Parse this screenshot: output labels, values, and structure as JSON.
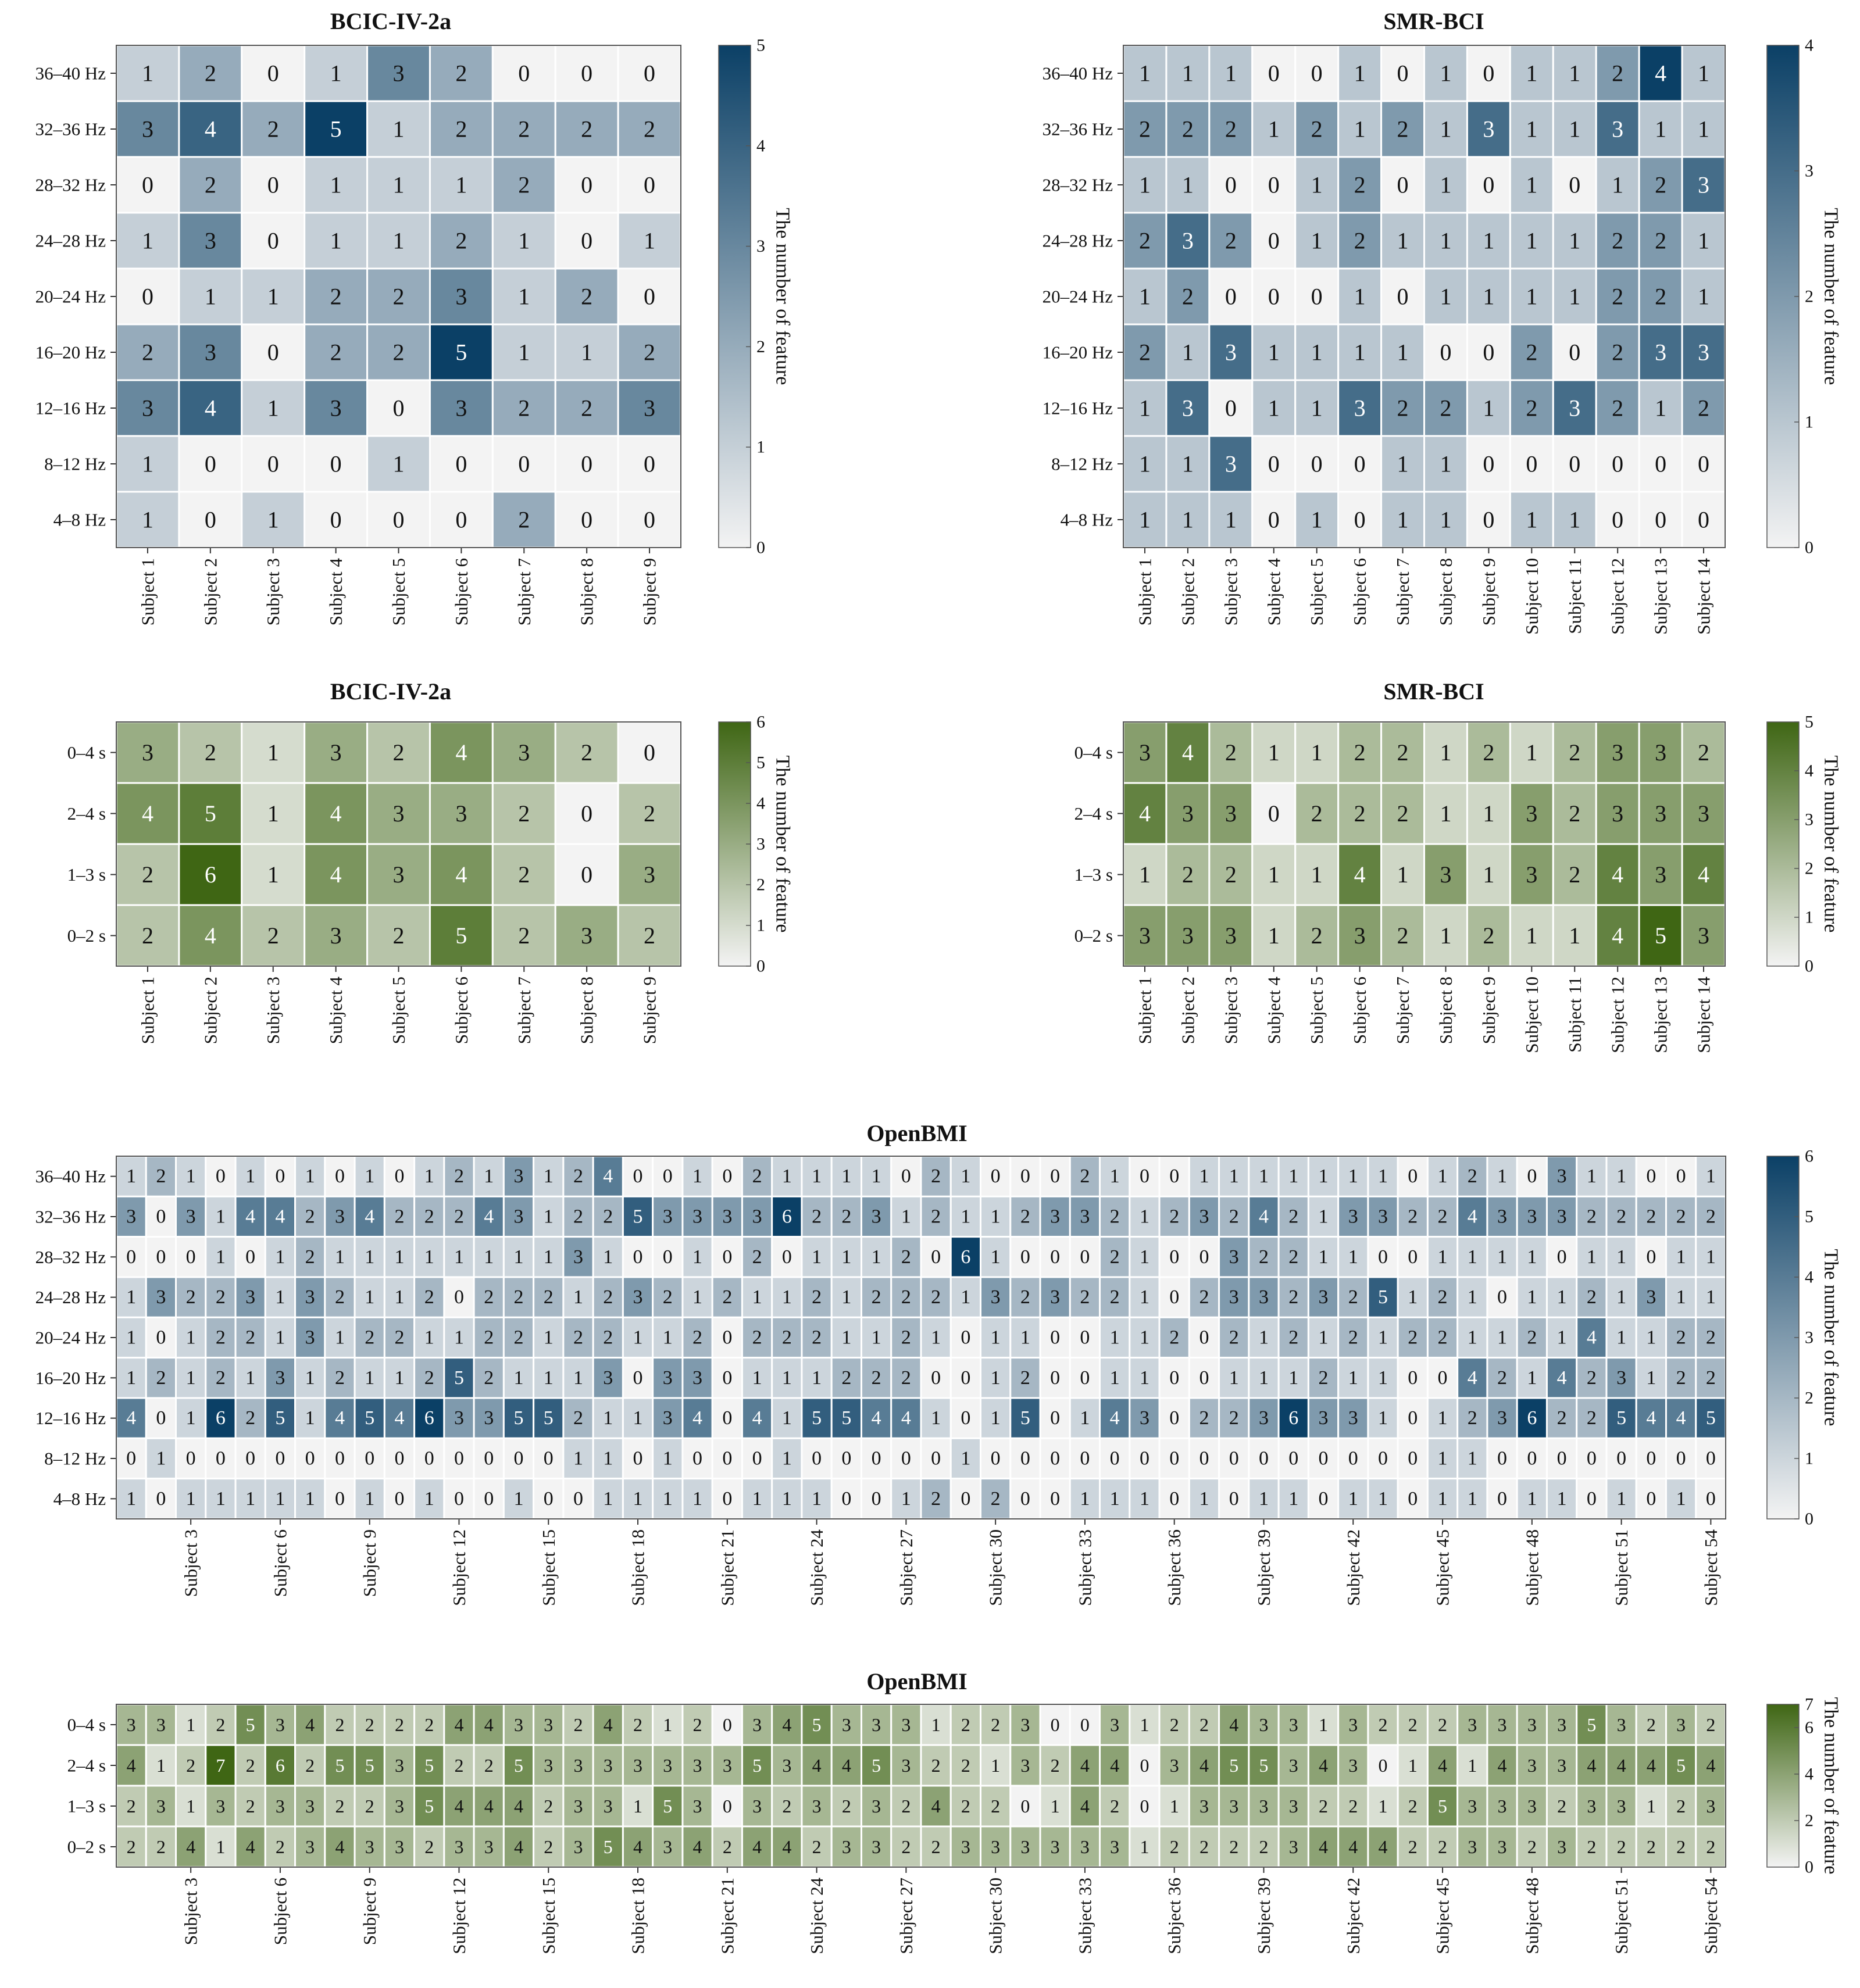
{
  "colorbar_label": "The number of feature",
  "palettes": {
    "blue": {
      "light": "#f3f3f3",
      "dark": "#0b4066",
      "text_dark": "#111111",
      "text_light": "#ffffff"
    },
    "green": {
      "light": "#f3f3f3",
      "dark": "#3f6614",
      "text_dark": "#111111",
      "text_light": "#ffffff"
    }
  },
  "chart_data": [
    {
      "id": "bcic-freq",
      "type": "heatmap",
      "title": "BCIC-IV-2a",
      "palette": "blue",
      "ylabels": [
        "36–40 Hz",
        "32–36 Hz",
        "28–32 Hz",
        "24–28 Hz",
        "20–24 Hz",
        "16–20 Hz",
        "12–16 Hz",
        "8–12 Hz",
        "4–8 Hz"
      ],
      "xlabels": [
        "Subject 1",
        "Subject 2",
        "Subject 3",
        "Subject 4",
        "Subject 5",
        "Subject 6",
        "Subject 7",
        "Subject 8",
        "Subject 9"
      ],
      "values": [
        [
          1,
          2,
          0,
          1,
          3,
          2,
          0,
          0,
          0
        ],
        [
          3,
          4,
          2,
          5,
          1,
          2,
          2,
          2,
          2
        ],
        [
          0,
          2,
          0,
          1,
          1,
          1,
          2,
          0,
          0
        ],
        [
          1,
          3,
          0,
          1,
          1,
          2,
          1,
          0,
          1
        ],
        [
          0,
          1,
          1,
          2,
          2,
          3,
          1,
          2,
          0
        ],
        [
          2,
          3,
          0,
          2,
          2,
          5,
          1,
          1,
          2
        ],
        [
          3,
          4,
          1,
          3,
          0,
          3,
          2,
          2,
          3
        ],
        [
          1,
          0,
          0,
          0,
          1,
          0,
          0,
          0,
          0
        ],
        [
          1,
          0,
          1,
          0,
          0,
          0,
          2,
          0,
          0
        ]
      ],
      "colorbar_range": [
        0,
        5
      ],
      "colorbar_ticks": [
        0,
        1,
        2,
        3,
        4,
        5
      ]
    },
    {
      "id": "smr-freq",
      "type": "heatmap",
      "title": "SMR-BCI",
      "palette": "blue",
      "ylabels": [
        "36–40 Hz",
        "32–36 Hz",
        "28–32 Hz",
        "24–28 Hz",
        "20–24 Hz",
        "16–20 Hz",
        "12–16 Hz",
        "8–12 Hz",
        "4–8 Hz"
      ],
      "xlabels": [
        "Subject 1",
        "Subject 2",
        "Subject 3",
        "Subject 4",
        "Subject 5",
        "Subject 6",
        "Subject 7",
        "Subject 8",
        "Subject 9",
        "Subject 10",
        "Subject 11",
        "Subject 12",
        "Subject 13",
        "Subject 14"
      ],
      "values": [
        [
          1,
          1,
          1,
          0,
          0,
          1,
          0,
          1,
          0,
          1,
          1,
          2,
          4,
          1
        ],
        [
          2,
          2,
          2,
          1,
          2,
          1,
          2,
          1,
          3,
          1,
          1,
          3,
          1,
          1
        ],
        [
          1,
          1,
          0,
          0,
          1,
          2,
          0,
          1,
          0,
          1,
          0,
          1,
          2,
          3
        ],
        [
          2,
          3,
          2,
          0,
          1,
          2,
          1,
          1,
          1,
          1,
          1,
          2,
          2,
          1
        ],
        [
          1,
          2,
          0,
          0,
          0,
          1,
          0,
          1,
          1,
          1,
          1,
          2,
          2,
          1
        ],
        [
          2,
          1,
          3,
          1,
          1,
          1,
          1,
          0,
          0,
          2,
          0,
          2,
          3,
          3
        ],
        [
          1,
          3,
          0,
          1,
          1,
          3,
          2,
          2,
          1,
          2,
          3,
          2,
          1,
          2
        ],
        [
          1,
          1,
          3,
          0,
          0,
          0,
          1,
          1,
          0,
          0,
          0,
          0,
          0,
          0
        ],
        [
          1,
          1,
          1,
          0,
          1,
          0,
          1,
          1,
          0,
          1,
          1,
          0,
          0,
          0
        ]
      ],
      "colorbar_range": [
        0,
        4
      ],
      "colorbar_ticks": [
        0,
        1,
        2,
        3,
        4
      ]
    },
    {
      "id": "bcic-time",
      "type": "heatmap",
      "title": "BCIC-IV-2a",
      "palette": "green",
      "ylabels": [
        "0–4 s",
        "2–4 s",
        "1–3 s",
        "0–2 s"
      ],
      "xlabels": [
        "Subject 1",
        "Subject 2",
        "Subject 3",
        "Subject 4",
        "Subject 5",
        "Subject 6",
        "Subject 7",
        "Subject 8",
        "Subject 9"
      ],
      "values": [
        [
          3,
          2,
          1,
          3,
          2,
          4,
          3,
          2,
          0
        ],
        [
          4,
          5,
          1,
          4,
          3,
          3,
          2,
          0,
          2
        ],
        [
          2,
          6,
          1,
          4,
          3,
          4,
          2,
          0,
          3
        ],
        [
          2,
          4,
          2,
          3,
          2,
          5,
          2,
          3,
          2
        ]
      ],
      "colorbar_range": [
        0,
        6
      ],
      "colorbar_ticks": [
        0,
        1,
        2,
        3,
        4,
        5,
        6
      ]
    },
    {
      "id": "smr-time",
      "type": "heatmap",
      "title": "SMR-BCI",
      "palette": "green",
      "ylabels": [
        "0–4 s",
        "2–4 s",
        "1–3 s",
        "0–2 s"
      ],
      "xlabels": [
        "Subject 1",
        "Subject 2",
        "Subject 3",
        "Subject 4",
        "Subject 5",
        "Subject 6",
        "Subject 7",
        "Subject 8",
        "Subject 9",
        "Subject 10",
        "Subject 11",
        "Subject 12",
        "Subject 13",
        "Subject 14"
      ],
      "values": [
        [
          3,
          4,
          2,
          1,
          1,
          2,
          2,
          1,
          2,
          1,
          2,
          3,
          3,
          2
        ],
        [
          4,
          3,
          3,
          0,
          2,
          2,
          2,
          1,
          1,
          3,
          2,
          3,
          3,
          3
        ],
        [
          1,
          2,
          2,
          1,
          1,
          4,
          1,
          3,
          1,
          3,
          2,
          4,
          3,
          4
        ],
        [
          3,
          3,
          3,
          1,
          2,
          3,
          2,
          1,
          2,
          1,
          1,
          4,
          5,
          3
        ]
      ],
      "colorbar_range": [
        0,
        5
      ],
      "colorbar_ticks": [
        0,
        1,
        2,
        3,
        4,
        5
      ]
    },
    {
      "id": "openbmi-freq",
      "type": "heatmap",
      "title": "OpenBMI",
      "palette": "blue",
      "ylabels": [
        "36–40 Hz",
        "32–36 Hz",
        "28–32 Hz",
        "24–28 Hz",
        "20–24 Hz",
        "16–20 Hz",
        "12–16 Hz",
        "8–12 Hz",
        "4–8 Hz"
      ],
      "xlabels": [
        "Subject 3",
        "Subject 6",
        "Subject 9",
        "Subject 12",
        "Subject 15",
        "Subject 18",
        "Subject 21",
        "Subject 24",
        "Subject 27",
        "Subject 30",
        "Subject 33",
        "Subject 36",
        "Subject 39",
        "Subject 42",
        "Subject 45",
        "Subject 48",
        "Subject 51",
        "Subject 54"
      ],
      "xlabel_every": 3,
      "n_columns": 54,
      "values": [
        [
          1,
          2,
          1,
          0,
          1,
          0,
          1,
          0,
          1,
          0,
          1,
          2,
          1,
          3,
          1,
          2,
          4,
          0,
          0,
          1,
          0,
          2,
          1,
          1,
          1,
          1,
          0,
          2,
          1,
          0,
          0,
          0,
          2,
          1,
          0,
          0,
          1,
          1,
          1,
          1,
          1,
          1,
          1,
          0,
          1,
          2,
          1,
          0,
          3,
          1,
          1,
          0,
          0,
          1
        ],
        [
          3,
          0,
          3,
          1,
          4,
          4,
          2,
          3,
          4,
          2,
          2,
          2,
          4,
          3,
          1,
          2,
          2,
          5,
          3,
          3,
          3,
          3,
          6,
          2,
          2,
          3,
          1,
          2,
          1,
          1,
          2,
          3,
          3,
          2,
          1,
          2,
          3,
          2,
          4,
          2,
          1,
          3,
          3,
          2,
          2,
          4,
          3,
          3,
          3,
          2,
          2,
          2,
          2,
          2
        ],
        [
          0,
          0,
          0,
          1,
          0,
          1,
          2,
          1,
          1,
          1,
          1,
          1,
          1,
          1,
          1,
          3,
          1,
          0,
          0,
          1,
          0,
          2,
          0,
          1,
          1,
          1,
          2,
          0,
          6,
          1,
          0,
          0,
          0,
          2,
          1,
          0,
          0,
          3,
          2,
          2,
          1,
          1,
          0,
          0,
          1,
          1,
          1,
          1,
          0,
          1,
          1,
          0,
          1,
          1
        ],
        [
          1,
          3,
          2,
          2,
          3,
          1,
          3,
          2,
          1,
          1,
          2,
          0,
          2,
          2,
          2,
          1,
          2,
          3,
          2,
          1,
          2,
          1,
          1,
          2,
          1,
          2,
          2,
          2,
          1,
          3,
          2,
          3,
          2,
          2,
          1,
          0,
          2,
          3,
          3,
          2,
          3,
          2,
          5,
          1,
          2,
          1,
          0,
          1,
          1,
          2,
          1,
          3,
          1,
          1
        ],
        [
          1,
          0,
          1,
          2,
          2,
          1,
          3,
          1,
          2,
          2,
          1,
          1,
          2,
          2,
          1,
          2,
          2,
          1,
          1,
          2,
          0,
          2,
          2,
          2,
          1,
          1,
          2,
          1,
          0,
          1,
          1,
          0,
          0,
          1,
          1,
          2,
          0,
          2,
          1,
          2,
          1,
          2,
          1,
          2,
          2,
          1,
          1,
          2,
          1,
          4,
          1,
          1,
          2,
          2
        ],
        [
          1,
          2,
          1,
          2,
          1,
          3,
          1,
          2,
          1,
          1,
          2,
          5,
          2,
          1,
          1,
          1,
          3,
          0,
          3,
          3,
          0,
          1,
          1,
          1,
          2,
          2,
          2,
          0,
          0,
          1,
          2,
          0,
          0,
          1,
          1,
          0,
          0,
          1,
          1,
          1,
          2,
          1,
          1,
          0,
          0,
          4,
          2,
          1,
          4,
          2,
          3,
          1,
          2,
          2
        ],
        [
          4,
          0,
          1,
          6,
          2,
          5,
          1,
          4,
          5,
          4,
          6,
          3,
          3,
          5,
          5,
          2,
          1,
          1,
          3,
          4,
          0,
          4,
          1,
          5,
          5,
          4,
          4,
          1,
          0,
          1,
          5,
          0,
          1,
          4,
          3,
          0,
          2,
          2,
          3,
          6,
          3,
          3,
          1,
          0,
          1,
          2,
          3,
          6,
          2,
          2,
          5,
          4,
          4,
          5
        ],
        [
          0,
          1,
          0,
          0,
          0,
          0,
          0,
          0,
          0,
          0,
          0,
          0,
          0,
          0,
          0,
          1,
          1,
          0,
          1,
          0,
          0,
          0,
          1,
          0,
          0,
          0,
          0,
          0,
          1,
          0,
          0,
          0,
          0,
          0,
          0,
          0,
          0,
          0,
          0,
          0,
          0,
          0,
          0,
          0,
          1,
          1,
          0,
          0,
          0,
          0,
          0,
          0,
          0,
          0
        ],
        [
          1,
          0,
          1,
          1,
          1,
          1,
          1,
          0,
          1,
          0,
          1,
          0,
          0,
          1,
          0,
          0,
          1,
          1,
          1,
          1,
          0,
          1,
          1,
          1,
          0,
          0,
          1,
          2,
          0,
          2,
          0,
          0,
          1,
          1,
          1,
          0,
          1,
          0,
          1,
          1,
          0,
          1,
          1,
          0,
          1,
          1,
          0,
          1,
          1,
          0,
          1,
          0,
          1,
          0
        ]
      ],
      "colorbar_range": [
        0,
        6
      ],
      "colorbar_ticks": [
        0,
        1,
        2,
        3,
        4,
        5,
        6
      ]
    },
    {
      "id": "openbmi-time",
      "type": "heatmap",
      "title": "OpenBMI",
      "palette": "green",
      "ylabels": [
        "0–4 s",
        "2–4 s",
        "1–3 s",
        "0–2 s"
      ],
      "xlabels": [
        "Subject 3",
        "Subject 6",
        "Subject 9",
        "Subject 12",
        "Subject 15",
        "Subject 18",
        "Subject 21",
        "Subject 24",
        "Subject 27",
        "Subject 30",
        "Subject 33",
        "Subject 36",
        "Subject 39",
        "Subject 42",
        "Subject 45",
        "Subject 48",
        "Subject 51",
        "Subject 54"
      ],
      "xlabel_every": 3,
      "n_columns": 54,
      "values": [
        [
          3,
          3,
          1,
          2,
          5,
          3,
          4,
          2,
          2,
          2,
          2,
          4,
          4,
          3,
          3,
          2,
          4,
          2,
          1,
          2,
          0,
          3,
          4,
          5,
          3,
          3,
          3,
          1,
          2,
          2,
          3,
          0,
          0,
          3,
          1,
          2,
          2,
          4,
          3,
          3,
          1,
          3,
          2,
          2,
          2,
          3,
          3,
          3,
          3,
          5,
          3,
          2,
          3,
          2
        ],
        [
          4,
          1,
          2,
          7,
          2,
          6,
          2,
          5,
          5,
          3,
          5,
          2,
          2,
          5,
          3,
          3,
          3,
          3,
          3,
          3,
          3,
          5,
          3,
          4,
          4,
          5,
          3,
          2,
          2,
          1,
          3,
          2,
          4,
          4,
          0,
          3,
          4,
          5,
          5,
          3,
          4,
          3,
          0,
          1,
          4,
          1,
          4,
          3,
          3,
          4,
          4,
          4,
          5,
          4
        ],
        [
          2,
          3,
          1,
          3,
          2,
          3,
          3,
          2,
          2,
          3,
          5,
          4,
          4,
          4,
          2,
          3,
          3,
          1,
          5,
          3,
          0,
          3,
          2,
          3,
          2,
          3,
          2,
          4,
          2,
          2,
          0,
          1,
          4,
          2,
          0,
          1,
          3,
          3,
          3,
          3,
          2,
          2,
          1,
          2,
          5,
          3,
          3,
          3,
          2,
          3,
          3,
          1,
          2,
          3
        ],
        [
          2,
          2,
          4,
          1,
          4,
          2,
          3,
          4,
          3,
          3,
          2,
          3,
          3,
          4,
          2,
          3,
          5,
          4,
          3,
          4,
          2,
          4,
          4,
          2,
          3,
          3,
          2,
          2,
          3,
          3,
          3,
          3,
          3,
          3,
          1,
          2,
          2,
          2,
          2,
          3,
          4,
          4,
          4,
          2,
          2,
          3,
          3,
          2,
          3,
          2,
          2,
          2,
          2,
          2
        ]
      ],
      "colorbar_range": [
        0,
        7
      ],
      "colorbar_ticks": [
        0,
        2,
        4,
        6,
        7
      ]
    }
  ]
}
